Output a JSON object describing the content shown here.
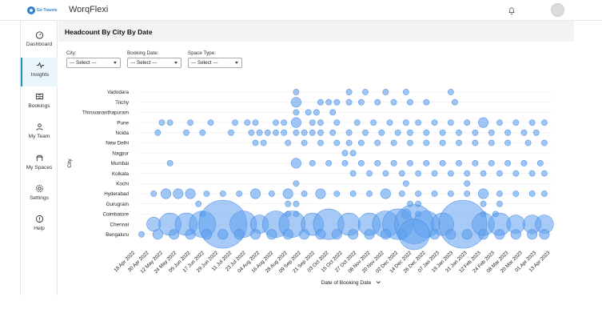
{
  "header": {
    "logo_text": "Go Travels",
    "app_title": "WorqFlexi"
  },
  "sidebar": {
    "items": [
      {
        "label": "Dashboard",
        "icon": "dashboard-icon"
      },
      {
        "label": "Insights",
        "icon": "insights-icon"
      },
      {
        "label": "Bookings",
        "icon": "bookings-icon"
      },
      {
        "label": "My Team",
        "icon": "team-icon"
      },
      {
        "label": "My Spaces",
        "icon": "spaces-icon"
      },
      {
        "label": "Settings",
        "icon": "settings-icon"
      },
      {
        "label": "Help",
        "icon": "help-icon"
      }
    ]
  },
  "page": {
    "title": "Headcount By City By Date"
  },
  "filters": [
    {
      "label": "City:",
      "value": "--- Select ---"
    },
    {
      "label": "Booking Date:",
      "value": "--- Select ---"
    },
    {
      "label": "Space Type:",
      "value": "--- Select ---"
    }
  ],
  "chart_data": {
    "type": "scatter",
    "title": "Headcount By City By Date",
    "xlabel": "Date of Booking Date",
    "ylabel": "City",
    "categories_y": [
      "Vadodara",
      "Trichy",
      "Thiruvananthapuram",
      "Pune",
      "Noida",
      "New Delhi",
      "Nagpur",
      "Mumbai",
      "Kolkata",
      "Kochi",
      "Hyderabad",
      "Gurugram",
      "Coimbatore",
      "Chennai",
      "Bengaluru"
    ],
    "x_ticks": [
      "18 Apr 2022",
      "30 Apr 2022",
      "12 May 2022",
      "24 May 2022",
      "05 Jun 2022",
      "17 Jun 2022",
      "29 Jun 2022",
      "11 Jul 2022",
      "23 Jul 2022",
      "04 Aug 2022",
      "16 Aug 2022",
      "28 Aug 2022",
      "09 Sep 2022",
      "21 Sep 2022",
      "03 Oct 2022",
      "15 Oct 2022",
      "27 Oct 2022",
      "08 Nov 2022",
      "20 Nov 2022",
      "02 Dec 2022",
      "14 Dec 2022",
      "26 Dec 2022",
      "07 Jan 2023",
      "19 Jan 2023",
      "31 Jan 2023",
      "12 Feb 2023",
      "24 Feb 2023",
      "08 Mar 2023",
      "20 Mar 2023",
      "01 Apr 2023",
      "13 Apr 2023"
    ],
    "x_range": [
      "2022-04-15",
      "2023-04-20"
    ],
    "series": [
      {
        "city": "Vadodara",
        "points": [
          [
            0.38,
            1
          ],
          [
            0.51,
            1
          ],
          [
            0.55,
            1
          ],
          [
            0.6,
            1
          ],
          [
            0.65,
            1
          ],
          [
            0.76,
            1
          ]
        ]
      },
      {
        "city": "Trichy",
        "points": [
          [
            0.38,
            2
          ],
          [
            0.44,
            1
          ],
          [
            0.46,
            1
          ],
          [
            0.48,
            1
          ],
          [
            0.51,
            1
          ],
          [
            0.54,
            1
          ],
          [
            0.58,
            1
          ],
          [
            0.62,
            1
          ],
          [
            0.66,
            1
          ],
          [
            0.7,
            1
          ],
          [
            0.77,
            1
          ]
        ]
      },
      {
        "city": "Thiruvananthapuram",
        "points": [
          [
            0.38,
            1
          ],
          [
            0.41,
            1
          ],
          [
            0.43,
            1
          ],
          [
            0.47,
            1
          ]
        ]
      },
      {
        "city": "Pune",
        "points": [
          [
            0.05,
            1
          ],
          [
            0.07,
            1
          ],
          [
            0.12,
            1
          ],
          [
            0.17,
            1
          ],
          [
            0.23,
            1
          ],
          [
            0.26,
            1
          ],
          [
            0.28,
            1
          ],
          [
            0.33,
            1
          ],
          [
            0.35,
            1
          ],
          [
            0.38,
            2
          ],
          [
            0.42,
            1
          ],
          [
            0.44,
            1
          ],
          [
            0.48,
            1
          ],
          [
            0.53,
            1
          ],
          [
            0.57,
            1
          ],
          [
            0.61,
            1
          ],
          [
            0.65,
            1
          ],
          [
            0.68,
            1
          ],
          [
            0.72,
            1
          ],
          [
            0.76,
            1
          ],
          [
            0.8,
            1
          ],
          [
            0.84,
            2
          ],
          [
            0.88,
            1
          ],
          [
            0.92,
            1
          ],
          [
            0.96,
            1
          ],
          [
            0.99,
            1
          ]
        ]
      },
      {
        "city": "Noida",
        "points": [
          [
            0.04,
            1
          ],
          [
            0.11,
            1
          ],
          [
            0.15,
            1
          ],
          [
            0.22,
            1
          ],
          [
            0.27,
            1
          ],
          [
            0.29,
            1
          ],
          [
            0.31,
            1
          ],
          [
            0.33,
            1
          ],
          [
            0.35,
            1
          ],
          [
            0.38,
            1
          ],
          [
            0.4,
            1
          ],
          [
            0.42,
            1
          ],
          [
            0.44,
            1
          ],
          [
            0.47,
            1
          ],
          [
            0.51,
            1
          ],
          [
            0.55,
            1
          ],
          [
            0.59,
            1
          ],
          [
            0.63,
            1
          ],
          [
            0.66,
            1
          ],
          [
            0.7,
            1
          ],
          [
            0.74,
            1
          ],
          [
            0.78,
            1
          ],
          [
            0.82,
            1
          ],
          [
            0.86,
            1
          ],
          [
            0.9,
            1
          ],
          [
            0.94,
            1
          ],
          [
            0.97,
            1
          ]
        ]
      },
      {
        "city": "New Delhi",
        "points": [
          [
            0.28,
            1
          ],
          [
            0.3,
            1
          ],
          [
            0.36,
            1
          ],
          [
            0.4,
            1
          ],
          [
            0.44,
            1
          ],
          [
            0.48,
            1
          ],
          [
            0.51,
            1
          ],
          [
            0.54,
            1
          ],
          [
            0.58,
            1
          ],
          [
            0.62,
            1
          ],
          [
            0.66,
            1
          ],
          [
            0.7,
            1
          ],
          [
            0.74,
            1
          ],
          [
            0.78,
            1
          ],
          [
            0.82,
            1
          ],
          [
            0.86,
            1
          ],
          [
            0.9,
            1
          ],
          [
            0.95,
            1
          ],
          [
            0.99,
            1
          ]
        ]
      },
      {
        "city": "Nagpur",
        "points": [
          [
            0.5,
            1
          ],
          [
            0.52,
            1
          ]
        ]
      },
      {
        "city": "Mumbai",
        "points": [
          [
            0.07,
            1
          ],
          [
            0.38,
            2
          ],
          [
            0.42,
            1
          ],
          [
            0.46,
            1
          ],
          [
            0.5,
            1
          ],
          [
            0.54,
            1
          ],
          [
            0.58,
            1
          ],
          [
            0.62,
            1
          ],
          [
            0.66,
            1
          ],
          [
            0.7,
            1
          ],
          [
            0.74,
            1
          ],
          [
            0.78,
            1
          ],
          [
            0.82,
            1
          ],
          [
            0.86,
            1
          ],
          [
            0.9,
            1
          ],
          [
            0.94,
            1
          ],
          [
            0.98,
            1
          ]
        ]
      },
      {
        "city": "Kolkata",
        "points": [
          [
            0.52,
            1
          ],
          [
            0.56,
            1
          ],
          [
            0.6,
            1
          ],
          [
            0.64,
            1
          ],
          [
            0.68,
            1
          ],
          [
            0.72,
            1
          ],
          [
            0.76,
            1
          ],
          [
            0.8,
            1
          ],
          [
            0.84,
            1
          ],
          [
            0.88,
            1
          ],
          [
            0.92,
            1
          ],
          [
            0.96,
            1
          ],
          [
            0.99,
            1
          ]
        ]
      },
      {
        "city": "Kochi",
        "points": [
          [
            0.38,
            1
          ],
          [
            0.65,
            1
          ],
          [
            0.8,
            1
          ]
        ]
      },
      {
        "city": "Hyderabad",
        "points": [
          [
            0.03,
            1
          ],
          [
            0.06,
            2
          ],
          [
            0.09,
            2
          ],
          [
            0.12,
            2
          ],
          [
            0.16,
            1
          ],
          [
            0.2,
            1
          ],
          [
            0.24,
            1
          ],
          [
            0.28,
            2
          ],
          [
            0.32,
            1
          ],
          [
            0.36,
            2
          ],
          [
            0.4,
            1
          ],
          [
            0.44,
            2
          ],
          [
            0.48,
            1
          ],
          [
            0.52,
            1
          ],
          [
            0.56,
            1
          ],
          [
            0.6,
            2
          ],
          [
            0.64,
            1
          ],
          [
            0.68,
            1
          ],
          [
            0.72,
            1
          ],
          [
            0.76,
            1
          ],
          [
            0.8,
            1
          ],
          [
            0.84,
            2
          ],
          [
            0.88,
            1
          ],
          [
            0.92,
            1
          ],
          [
            0.96,
            1
          ],
          [
            0.99,
            1
          ]
        ]
      },
      {
        "city": "Gurugram",
        "points": [
          [
            0.14,
            1
          ],
          [
            0.36,
            1
          ],
          [
            0.38,
            1
          ],
          [
            0.66,
            1
          ],
          [
            0.68,
            1
          ],
          [
            0.84,
            1
          ],
          [
            0.88,
            1
          ]
        ]
      },
      {
        "city": "Coimbatore",
        "points": [
          [
            0.15,
            1
          ],
          [
            0.36,
            1
          ],
          [
            0.38,
            1
          ],
          [
            0.65,
            2
          ],
          [
            0.68,
            1
          ],
          [
            0.84,
            1
          ],
          [
            0.87,
            1
          ]
        ]
      },
      {
        "city": "Chennai",
        "points": [
          [
            0.03,
            3
          ],
          [
            0.07,
            5
          ],
          [
            0.11,
            5
          ],
          [
            0.15,
            6
          ],
          [
            0.2,
            12
          ],
          [
            0.25,
            6
          ],
          [
            0.29,
            4
          ],
          [
            0.33,
            6
          ],
          [
            0.37,
            6
          ],
          [
            0.42,
            5
          ],
          [
            0.46,
            7
          ],
          [
            0.51,
            5
          ],
          [
            0.56,
            5
          ],
          [
            0.6,
            6
          ],
          [
            0.63,
            7
          ],
          [
            0.67,
            9
          ],
          [
            0.7,
            6
          ],
          [
            0.74,
            5
          ],
          [
            0.79,
            12
          ],
          [
            0.84,
            5
          ],
          [
            0.88,
            5
          ],
          [
            0.92,
            4
          ],
          [
            0.96,
            4
          ],
          [
            0.99,
            4
          ]
        ]
      },
      {
        "city": "Bengaluru",
        "points": [
          [
            0.0,
            1
          ],
          [
            0.04,
            2
          ],
          [
            0.08,
            2
          ],
          [
            0.12,
            2
          ],
          [
            0.16,
            2
          ],
          [
            0.2,
            2
          ],
          [
            0.24,
            2
          ],
          [
            0.28,
            2
          ],
          [
            0.32,
            2
          ],
          [
            0.36,
            2
          ],
          [
            0.4,
            2
          ],
          [
            0.44,
            2
          ],
          [
            0.48,
            2
          ],
          [
            0.52,
            2
          ],
          [
            0.56,
            2
          ],
          [
            0.6,
            2
          ],
          [
            0.64,
            2
          ],
          [
            0.67,
            7
          ],
          [
            0.72,
            2
          ],
          [
            0.76,
            2
          ],
          [
            0.8,
            2
          ],
          [
            0.84,
            2
          ],
          [
            0.88,
            2
          ],
          [
            0.92,
            2
          ],
          [
            0.96,
            2
          ],
          [
            0.99,
            2
          ]
        ]
      }
    ],
    "color": "#5fa0ee",
    "grid": false
  }
}
